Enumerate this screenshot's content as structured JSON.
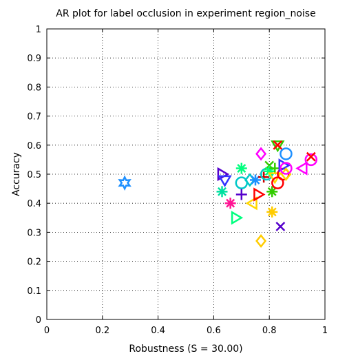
{
  "chart_data": {
    "type": "scatter",
    "title": "AR plot for label occlusion in experiment region_noise",
    "xlabel": "Robustness (S = 30.00)",
    "ylabel": "Accuracy",
    "xlim": [
      0,
      1
    ],
    "ylim": [
      0,
      1
    ],
    "xticks": [
      "0",
      "0.2",
      "0.4",
      "0.6",
      "0.8",
      "1"
    ],
    "yticks": [
      "0",
      "0.1",
      "0.2",
      "0.3",
      "0.4",
      "0.5",
      "0.6",
      "0.7",
      "0.8",
      "0.9",
      "1"
    ],
    "grid": true,
    "legend": "none",
    "points": [
      {
        "x": 0.28,
        "y": 0.47,
        "marker": "hexagram",
        "color": "#1e90ff"
      },
      {
        "x": 0.63,
        "y": 0.5,
        "marker": "triangle-right",
        "color": "#5500cc"
      },
      {
        "x": 0.64,
        "y": 0.48,
        "marker": "triangle-down",
        "color": "#3333ff"
      },
      {
        "x": 0.63,
        "y": 0.44,
        "marker": "asterisk",
        "color": "#00e0a0"
      },
      {
        "x": 0.66,
        "y": 0.4,
        "marker": "asterisk",
        "color": "#ff1493"
      },
      {
        "x": 0.68,
        "y": 0.35,
        "marker": "triangle-right",
        "color": "#00ff7f"
      },
      {
        "x": 0.7,
        "y": 0.52,
        "marker": "asterisk",
        "color": "#00ff7f"
      },
      {
        "x": 0.7,
        "y": 0.47,
        "marker": "circle",
        "color": "#00c8c8"
      },
      {
        "x": 0.7,
        "y": 0.43,
        "marker": "plus",
        "color": "#5500cc"
      },
      {
        "x": 0.73,
        "y": 0.48,
        "marker": "diamond",
        "color": "#00c8c8"
      },
      {
        "x": 0.74,
        "y": 0.4,
        "marker": "triangle-left",
        "color": "#ffd700"
      },
      {
        "x": 0.75,
        "y": 0.48,
        "marker": "asterisk",
        "color": "#1e90ff"
      },
      {
        "x": 0.76,
        "y": 0.43,
        "marker": "triangle-right",
        "color": "#ff0000"
      },
      {
        "x": 0.77,
        "y": 0.57,
        "marker": "diamond",
        "color": "#ff00ff"
      },
      {
        "x": 0.77,
        "y": 0.27,
        "marker": "diamond",
        "color": "#ffcc00"
      },
      {
        "x": 0.78,
        "y": 0.49,
        "marker": "plus",
        "color": "#cc0000"
      },
      {
        "x": 0.79,
        "y": 0.5,
        "marker": "circle",
        "color": "#00c8c8"
      },
      {
        "x": 0.8,
        "y": 0.53,
        "marker": "x",
        "color": "#33cc00"
      },
      {
        "x": 0.8,
        "y": 0.51,
        "marker": "asterisk",
        "color": "#00ff7f"
      },
      {
        "x": 0.81,
        "y": 0.44,
        "marker": "asterisk",
        "color": "#33cc00"
      },
      {
        "x": 0.81,
        "y": 0.37,
        "marker": "asterisk",
        "color": "#ffcc00"
      },
      {
        "x": 0.82,
        "y": 0.52,
        "marker": "plus",
        "color": "#33cc00"
      },
      {
        "x": 0.82,
        "y": 0.49,
        "marker": "triangle-down",
        "color": "#ffd700"
      },
      {
        "x": 0.83,
        "y": 0.6,
        "marker": "triangle-down",
        "color": "#33cc00"
      },
      {
        "x": 0.83,
        "y": 0.6,
        "marker": "x",
        "color": "#ff0000"
      },
      {
        "x": 0.83,
        "y": 0.47,
        "marker": "circle",
        "color": "#ff0000"
      },
      {
        "x": 0.84,
        "y": 0.32,
        "marker": "x",
        "color": "#5500cc"
      },
      {
        "x": 0.85,
        "y": 0.5,
        "marker": "circle",
        "color": "#ff0000"
      },
      {
        "x": 0.85,
        "y": 0.53,
        "marker": "triangle-right",
        "color": "#3333ff"
      },
      {
        "x": 0.86,
        "y": 0.5,
        "marker": "diamond",
        "color": "#ffd700"
      },
      {
        "x": 0.86,
        "y": 0.57,
        "marker": "circle",
        "color": "#1e90ff"
      },
      {
        "x": 0.86,
        "y": 0.52,
        "marker": "circle",
        "color": "#ff00ff"
      },
      {
        "x": 0.92,
        "y": 0.52,
        "marker": "triangle-left",
        "color": "#ff00ff"
      },
      {
        "x": 0.95,
        "y": 0.55,
        "marker": "circle",
        "color": "#ff00ff"
      },
      {
        "x": 0.95,
        "y": 0.56,
        "marker": "x",
        "color": "#ff0000"
      }
    ]
  }
}
